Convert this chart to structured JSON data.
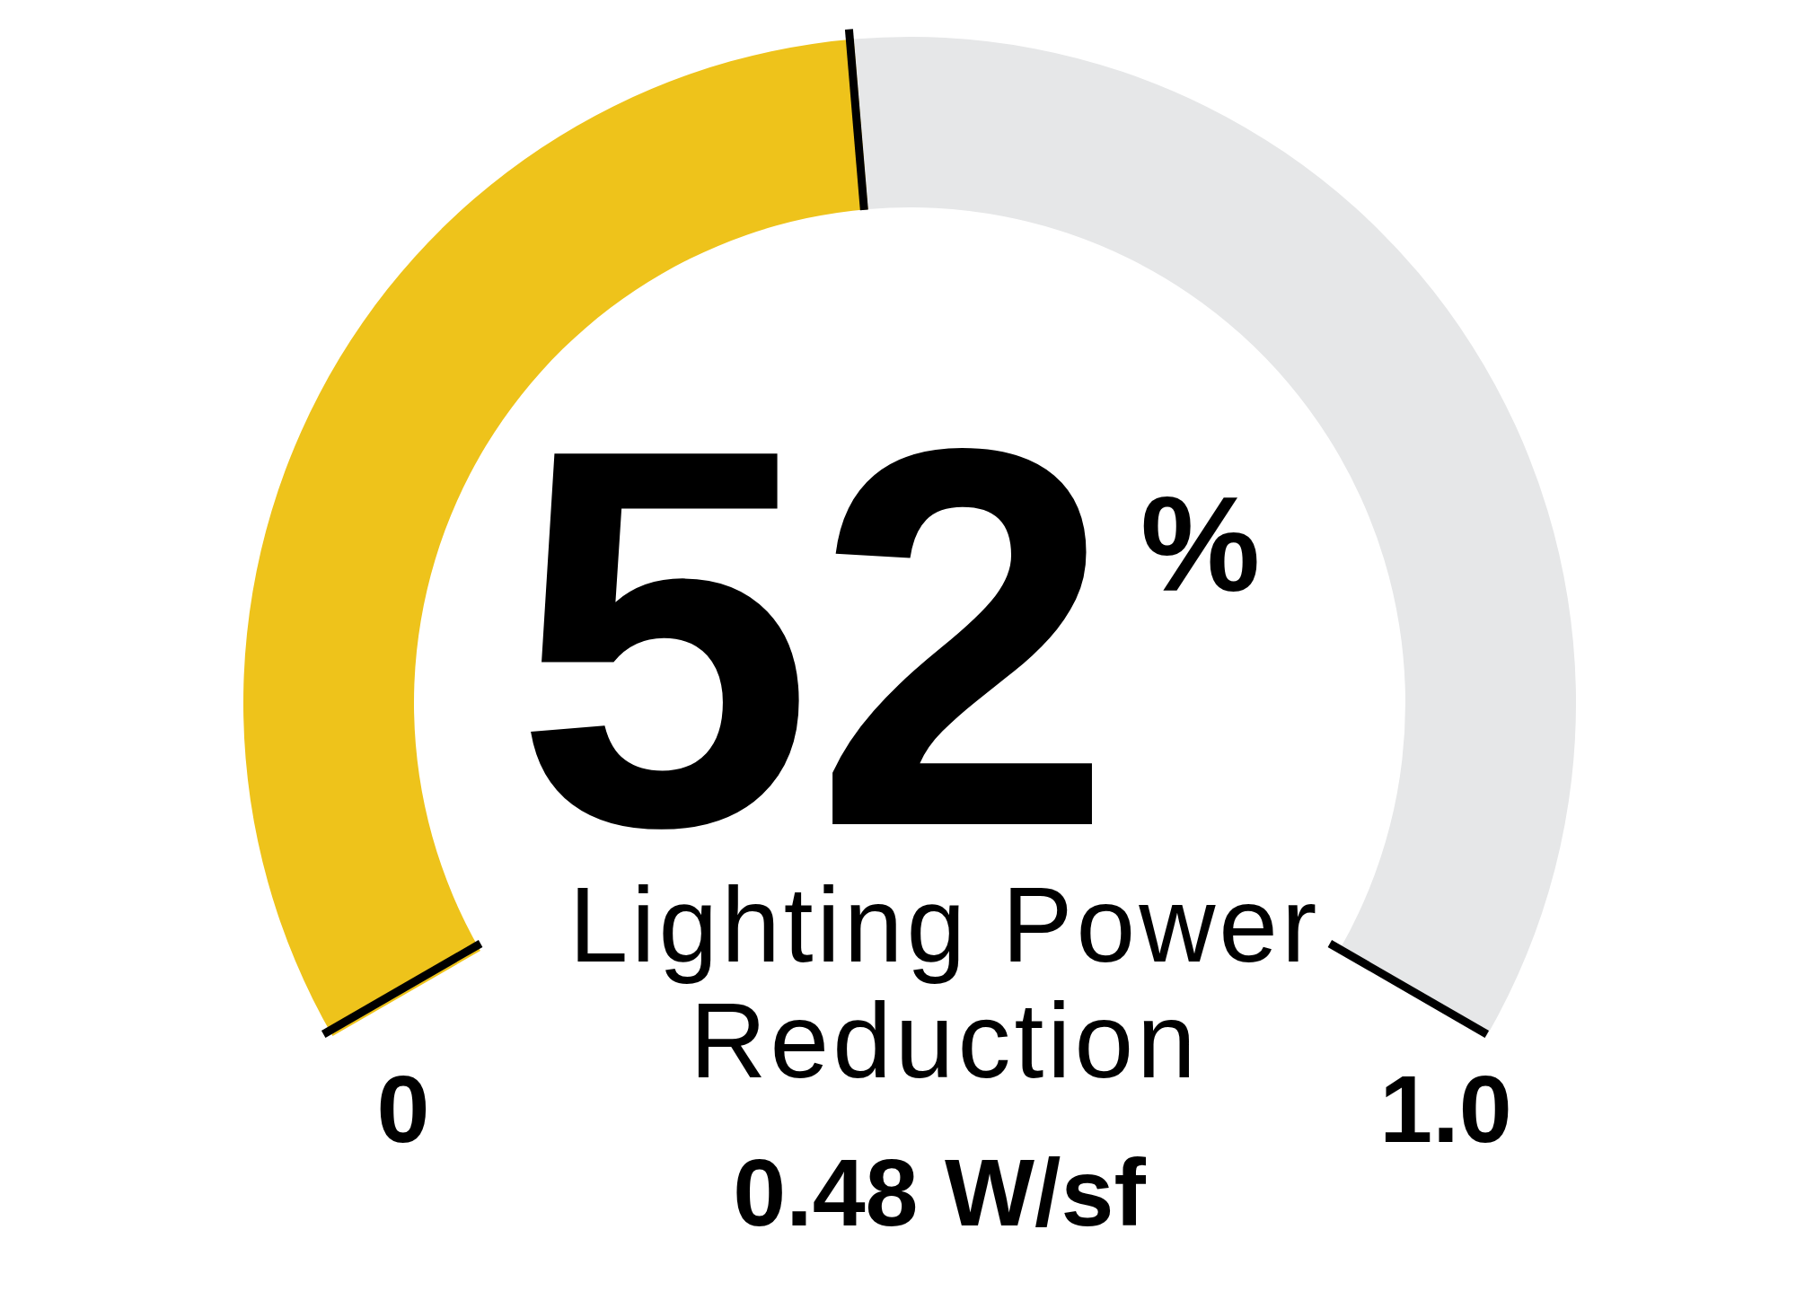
{
  "chart_data": {
    "type": "donut",
    "categories": [
      null,
      null
    ],
    "values": [
      48,
      52
    ],
    "colors": [
      "#eec31b",
      "#e6e7e8"
    ],
    "annotations": [
      "52$^{%}$",
      "Lighting Power Reduction",
      "0.48 W/sf",
      "0",
      "1.0"
    ]
  }
}
